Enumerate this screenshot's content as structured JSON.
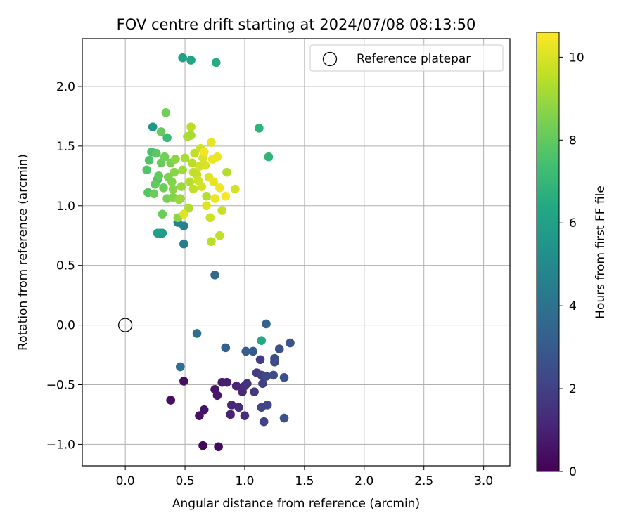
{
  "chart_data": {
    "type": "scatter",
    "title": "FOV centre drift starting at 2024/07/08 08:13:50",
    "xlabel": "Angular distance from reference (arcmin)",
    "ylabel": "Rotation from reference (arcmin)",
    "xlim": [
      -0.36,
      3.22
    ],
    "ylim": [
      -1.18,
      2.4
    ],
    "xticks": [
      0.0,
      0.5,
      1.0,
      1.5,
      2.0,
      2.5,
      3.0
    ],
    "xtick_labels": [
      "0.0",
      "0.5",
      "1.0",
      "1.5",
      "2.0",
      "2.5",
      "3.0"
    ],
    "yticks": [
      -1.0,
      -0.5,
      0.0,
      0.5,
      1.0,
      1.5,
      2.0
    ],
    "ytick_labels": [
      "−1.0",
      "−0.5",
      "0.0",
      "0.5",
      "1.0",
      "1.5",
      "2.0"
    ],
    "grid": true,
    "legend": {
      "position": "top-right",
      "entries": [
        "Reference platepar"
      ]
    },
    "reference_point": {
      "x": 0.0,
      "y": 0.0,
      "marker": "hollow-circle"
    },
    "colorbar": {
      "label": "Hours from first FF file",
      "min": 0,
      "max": 10.6,
      "colormap": "viridis",
      "ticks": [
        0,
        2,
        4,
        6,
        8,
        10
      ],
      "tick_labels": [
        "0",
        "2",
        "4",
        "6",
        "8",
        "10"
      ]
    },
    "points": [
      {
        "x": 0.65,
        "y": -1.01,
        "t": 0.2
      },
      {
        "x": 0.78,
        "y": -1.02,
        "t": 0.3
      },
      {
        "x": 0.38,
        "y": -0.63,
        "t": 0.4
      },
      {
        "x": 0.49,
        "y": -0.47,
        "t": 0.4
      },
      {
        "x": 0.62,
        "y": -0.76,
        "t": 0.5
      },
      {
        "x": 0.66,
        "y": -0.71,
        "t": 0.6
      },
      {
        "x": 0.75,
        "y": -0.54,
        "t": 0.6
      },
      {
        "x": 0.77,
        "y": -0.59,
        "t": 0.7
      },
      {
        "x": 0.81,
        "y": -0.48,
        "t": 0.8
      },
      {
        "x": 0.85,
        "y": -0.48,
        "t": 0.9
      },
      {
        "x": 0.88,
        "y": -0.75,
        "t": 1.0
      },
      {
        "x": 0.93,
        "y": -0.51,
        "t": 1.1
      },
      {
        "x": 0.89,
        "y": -0.67,
        "t": 1.2
      },
      {
        "x": 0.95,
        "y": -0.69,
        "t": 1.3
      },
      {
        "x": 0.98,
        "y": -0.56,
        "t": 1.3
      },
      {
        "x": 1.0,
        "y": -0.76,
        "t": 1.4
      },
      {
        "x": 1.0,
        "y": -0.51,
        "t": 1.5
      },
      {
        "x": 1.02,
        "y": -0.49,
        "t": 1.6
      },
      {
        "x": 1.08,
        "y": -0.56,
        "t": 1.7
      },
      {
        "x": 1.1,
        "y": -0.4,
        "t": 1.8
      },
      {
        "x": 1.13,
        "y": -0.29,
        "t": 1.9
      },
      {
        "x": 1.14,
        "y": -0.42,
        "t": 2.0
      },
      {
        "x": 1.15,
        "y": -0.49,
        "t": 2.0
      },
      {
        "x": 1.16,
        "y": -0.81,
        "t": 2.1
      },
      {
        "x": 1.14,
        "y": -0.69,
        "t": 2.2
      },
      {
        "x": 1.19,
        "y": -0.67,
        "t": 2.2
      },
      {
        "x": 1.18,
        "y": -0.43,
        "t": 2.3
      },
      {
        "x": 1.24,
        "y": -0.42,
        "t": 2.4
      },
      {
        "x": 1.25,
        "y": -0.31,
        "t": 2.4
      },
      {
        "x": 1.25,
        "y": -0.28,
        "t": 2.5
      },
      {
        "x": 1.29,
        "y": -0.2,
        "t": 2.6
      },
      {
        "x": 1.33,
        "y": -0.44,
        "t": 2.6
      },
      {
        "x": 1.33,
        "y": -0.78,
        "t": 2.7
      },
      {
        "x": 1.38,
        "y": -0.15,
        "t": 2.8
      },
      {
        "x": 1.07,
        "y": -0.22,
        "t": 3.0
      },
      {
        "x": 1.01,
        "y": -0.22,
        "t": 3.1
      },
      {
        "x": 0.84,
        "y": -0.19,
        "t": 3.3
      },
      {
        "x": 1.18,
        "y": 0.01,
        "t": 3.4
      },
      {
        "x": 0.6,
        "y": -0.07,
        "t": 3.8
      },
      {
        "x": 0.46,
        "y": -0.35,
        "t": 3.9
      },
      {
        "x": 0.75,
        "y": 0.42,
        "t": 3.6
      },
      {
        "x": 0.49,
        "y": 0.68,
        "t": 4.4
      },
      {
        "x": 0.49,
        "y": 0.83,
        "t": 4.6
      },
      {
        "x": 0.44,
        "y": 0.86,
        "t": 4.8
      },
      {
        "x": 0.23,
        "y": 1.66,
        "t": 5.5
      },
      {
        "x": 0.29,
        "y": 0.77,
        "t": 5.6
      },
      {
        "x": 0.31,
        "y": 0.77,
        "t": 5.8
      },
      {
        "x": 0.27,
        "y": 0.77,
        "t": 6.0
      },
      {
        "x": 0.48,
        "y": 2.24,
        "t": 6.0
      },
      {
        "x": 0.55,
        "y": 2.22,
        "t": 6.2
      },
      {
        "x": 1.14,
        "y": -0.13,
        "t": 6.4
      },
      {
        "x": 0.76,
        "y": 2.2,
        "t": 6.5
      },
      {
        "x": 1.12,
        "y": 1.65,
        "t": 6.8
      },
      {
        "x": 1.2,
        "y": 1.41,
        "t": 6.9
      },
      {
        "x": 0.35,
        "y": 1.57,
        "t": 7.2
      },
      {
        "x": 0.27,
        "y": 1.22,
        "t": 7.4
      },
      {
        "x": 0.22,
        "y": 1.45,
        "t": 7.5
      },
      {
        "x": 0.2,
        "y": 1.38,
        "t": 7.6
      },
      {
        "x": 0.18,
        "y": 1.3,
        "t": 7.7
      },
      {
        "x": 0.19,
        "y": 1.11,
        "t": 7.8
      },
      {
        "x": 0.26,
        "y": 1.44,
        "t": 7.9
      },
      {
        "x": 0.25,
        "y": 1.18,
        "t": 8.0
      },
      {
        "x": 0.28,
        "y": 1.25,
        "t": 8.0
      },
      {
        "x": 0.3,
        "y": 1.62,
        "t": 8.1
      },
      {
        "x": 0.3,
        "y": 1.36,
        "t": 8.1
      },
      {
        "x": 0.32,
        "y": 1.15,
        "t": 8.2
      },
      {
        "x": 0.31,
        "y": 0.93,
        "t": 8.2
      },
      {
        "x": 0.33,
        "y": 1.41,
        "t": 8.3
      },
      {
        "x": 0.34,
        "y": 1.78,
        "t": 8.3
      },
      {
        "x": 0.35,
        "y": 1.06,
        "t": 8.4
      },
      {
        "x": 0.36,
        "y": 1.24,
        "t": 8.5
      },
      {
        "x": 0.38,
        "y": 1.36,
        "t": 8.5
      },
      {
        "x": 0.39,
        "y": 1.2,
        "t": 8.6
      },
      {
        "x": 0.4,
        "y": 1.07,
        "t": 8.6
      },
      {
        "x": 0.4,
        "y": 1.14,
        "t": 8.7
      },
      {
        "x": 0.41,
        "y": 1.28,
        "t": 8.7
      },
      {
        "x": 0.42,
        "y": 1.39,
        "t": 8.8
      },
      {
        "x": 0.44,
        "y": 0.9,
        "t": 8.8
      },
      {
        "x": 0.46,
        "y": 1.06,
        "t": 8.9
      },
      {
        "x": 0.47,
        "y": 1.16,
        "t": 9.0
      },
      {
        "x": 0.48,
        "y": 1.3,
        "t": 9.1
      },
      {
        "x": 0.5,
        "y": 1.4,
        "t": 9.2
      },
      {
        "x": 0.52,
        "y": 1.58,
        "t": 9.3
      },
      {
        "x": 0.53,
        "y": 0.98,
        "t": 9.3
      },
      {
        "x": 0.54,
        "y": 1.2,
        "t": 9.4
      },
      {
        "x": 0.55,
        "y": 1.66,
        "t": 9.5
      },
      {
        "x": 0.56,
        "y": 1.36,
        "t": 9.5
      },
      {
        "x": 0.57,
        "y": 1.14,
        "t": 9.6
      },
      {
        "x": 0.58,
        "y": 1.44,
        "t": 9.6
      },
      {
        "x": 0.6,
        "y": 1.26,
        "t": 9.7
      },
      {
        "x": 0.61,
        "y": 1.21,
        "t": 9.8
      },
      {
        "x": 0.63,
        "y": 1.48,
        "t": 9.8
      },
      {
        "x": 0.64,
        "y": 1.16,
        "t": 9.9
      },
      {
        "x": 0.65,
        "y": 1.4,
        "t": 10.0
      },
      {
        "x": 0.67,
        "y": 1.34,
        "t": 10.0
      },
      {
        "x": 0.68,
        "y": 1.0,
        "t": 10.1
      },
      {
        "x": 0.7,
        "y": 1.24,
        "t": 10.1
      },
      {
        "x": 0.72,
        "y": 1.53,
        "t": 10.2
      },
      {
        "x": 0.74,
        "y": 1.2,
        "t": 10.2
      },
      {
        "x": 0.75,
        "y": 1.06,
        "t": 10.3
      },
      {
        "x": 0.77,
        "y": 1.41,
        "t": 10.3
      },
      {
        "x": 0.79,
        "y": 1.15,
        "t": 10.4
      },
      {
        "x": 0.81,
        "y": 0.96,
        "t": 9.7
      },
      {
        "x": 0.85,
        "y": 1.28,
        "t": 9.4
      },
      {
        "x": 0.84,
        "y": 1.08,
        "t": 10.5
      },
      {
        "x": 0.92,
        "y": 1.14,
        "t": 9.9
      },
      {
        "x": 0.79,
        "y": 0.75,
        "t": 9.6
      },
      {
        "x": 0.71,
        "y": 0.9,
        "t": 9.8
      },
      {
        "x": 0.72,
        "y": 0.7,
        "t": 9.5
      },
      {
        "x": 0.66,
        "y": 1.45,
        "t": 10.4
      },
      {
        "x": 0.62,
        "y": 1.33,
        "t": 9.9
      },
      {
        "x": 0.49,
        "y": 0.93,
        "t": 10.1
      },
      {
        "x": 0.45,
        "y": 1.05,
        "t": 9.0
      },
      {
        "x": 0.24,
        "y": 1.1,
        "t": 8.2
      },
      {
        "x": 0.55,
        "y": 1.59,
        "t": 9.2
      },
      {
        "x": 0.57,
        "y": 1.28,
        "t": 9.6
      },
      {
        "x": 0.73,
        "y": 1.39,
        "t": 10.3
      },
      {
        "x": 0.68,
        "y": 1.08,
        "t": 9.4
      }
    ]
  }
}
